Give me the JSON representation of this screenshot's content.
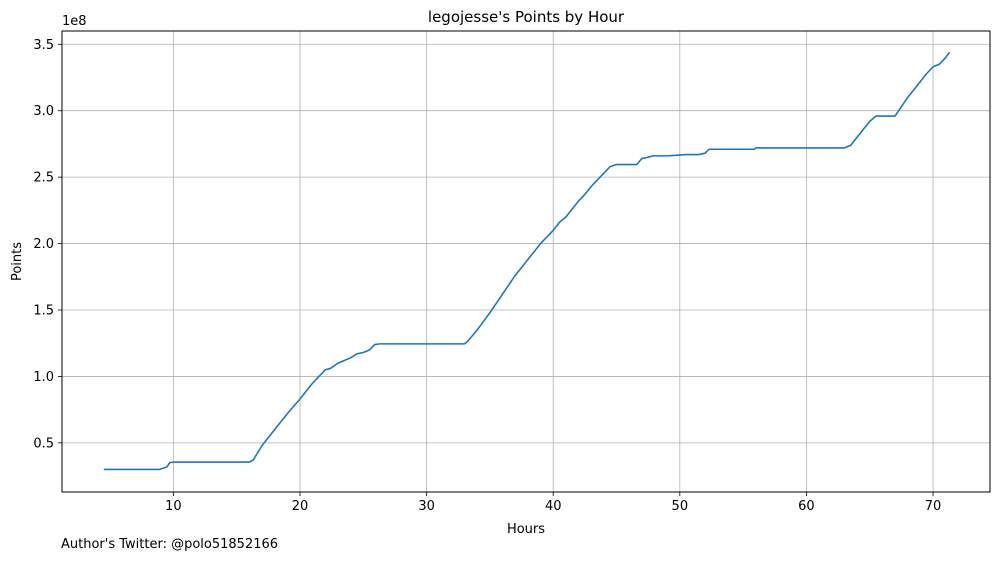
{
  "chart_data": {
    "type": "line",
    "title": "legojesse's Points by Hour",
    "xlabel": "Hours",
    "ylabel": "Points",
    "y_offset_label": "1e8",
    "xlim": [
      1.2,
      74.5
    ],
    "ylim": [
      0.13,
      3.6
    ],
    "x_ticks": [
      10,
      20,
      30,
      40,
      50,
      60,
      70
    ],
    "y_ticks": [
      0.5,
      1.0,
      1.5,
      2.0,
      2.5,
      3.0,
      3.5
    ],
    "y_tick_labels": [
      "0.5",
      "1.0",
      "1.5",
      "2.0",
      "2.5",
      "3.0",
      "3.5"
    ],
    "grid": true,
    "line_color": "#1f77b4",
    "series": [
      {
        "x": [
          4.5,
          6.0,
          8.0,
          8.9,
          9.2,
          9.5,
          9.7,
          10.0,
          12.0,
          14.0,
          16.0,
          16.3,
          17.0,
          18.0,
          19.0,
          20.0,
          21.0,
          22.0,
          22.4,
          23.0,
          23.5,
          24.0,
          24.5,
          25.0,
          25.5,
          25.9,
          26.3,
          28.0,
          30.0,
          32.0,
          33.0,
          33.3,
          34.0,
          35.0,
          36.0,
          37.0,
          38.0,
          39.0,
          40.0,
          40.5,
          41.0,
          41.5,
          42.0,
          42.5,
          43.0,
          43.5,
          44.0,
          44.5,
          45.0,
          45.5,
          46.0,
          46.6,
          47.0,
          47.5,
          47.9,
          49.0,
          49.8,
          50.5,
          51.5,
          52.0,
          52.3,
          53.0,
          54.0,
          55.0,
          55.9,
          56.0,
          57.0,
          58.0,
          59.0,
          60.0,
          61.0,
          62.0,
          63.0,
          63.5,
          64.0,
          64.5,
          65.0,
          65.5,
          66.0,
          66.5,
          67.0,
          67.5,
          68.0,
          68.5,
          69.0,
          69.5,
          70.0,
          70.5,
          71.0,
          71.3
        ],
        "y": [
          0.3,
          0.3,
          0.3,
          0.3,
          0.31,
          0.32,
          0.35,
          0.355,
          0.355,
          0.355,
          0.355,
          0.37,
          0.48,
          0.6,
          0.72,
          0.83,
          0.95,
          1.05,
          1.06,
          1.1,
          1.12,
          1.14,
          1.17,
          1.18,
          1.2,
          1.24,
          1.245,
          1.245,
          1.245,
          1.245,
          1.245,
          1.27,
          1.35,
          1.48,
          1.62,
          1.76,
          1.88,
          2.0,
          2.1,
          2.16,
          2.2,
          2.26,
          2.32,
          2.37,
          2.43,
          2.48,
          2.53,
          2.58,
          2.595,
          2.595,
          2.595,
          2.595,
          2.64,
          2.65,
          2.66,
          2.66,
          2.665,
          2.67,
          2.67,
          2.68,
          2.71,
          2.71,
          2.71,
          2.71,
          2.71,
          2.72,
          2.72,
          2.72,
          2.72,
          2.72,
          2.72,
          2.72,
          2.72,
          2.74,
          2.8,
          2.86,
          2.92,
          2.96,
          2.96,
          2.96,
          2.96,
          3.03,
          3.1,
          3.16,
          3.22,
          3.28,
          3.33,
          3.35,
          3.4,
          3.44
        ]
      }
    ]
  },
  "footer": {
    "text": "Author's Twitter: @polo51852166"
  }
}
